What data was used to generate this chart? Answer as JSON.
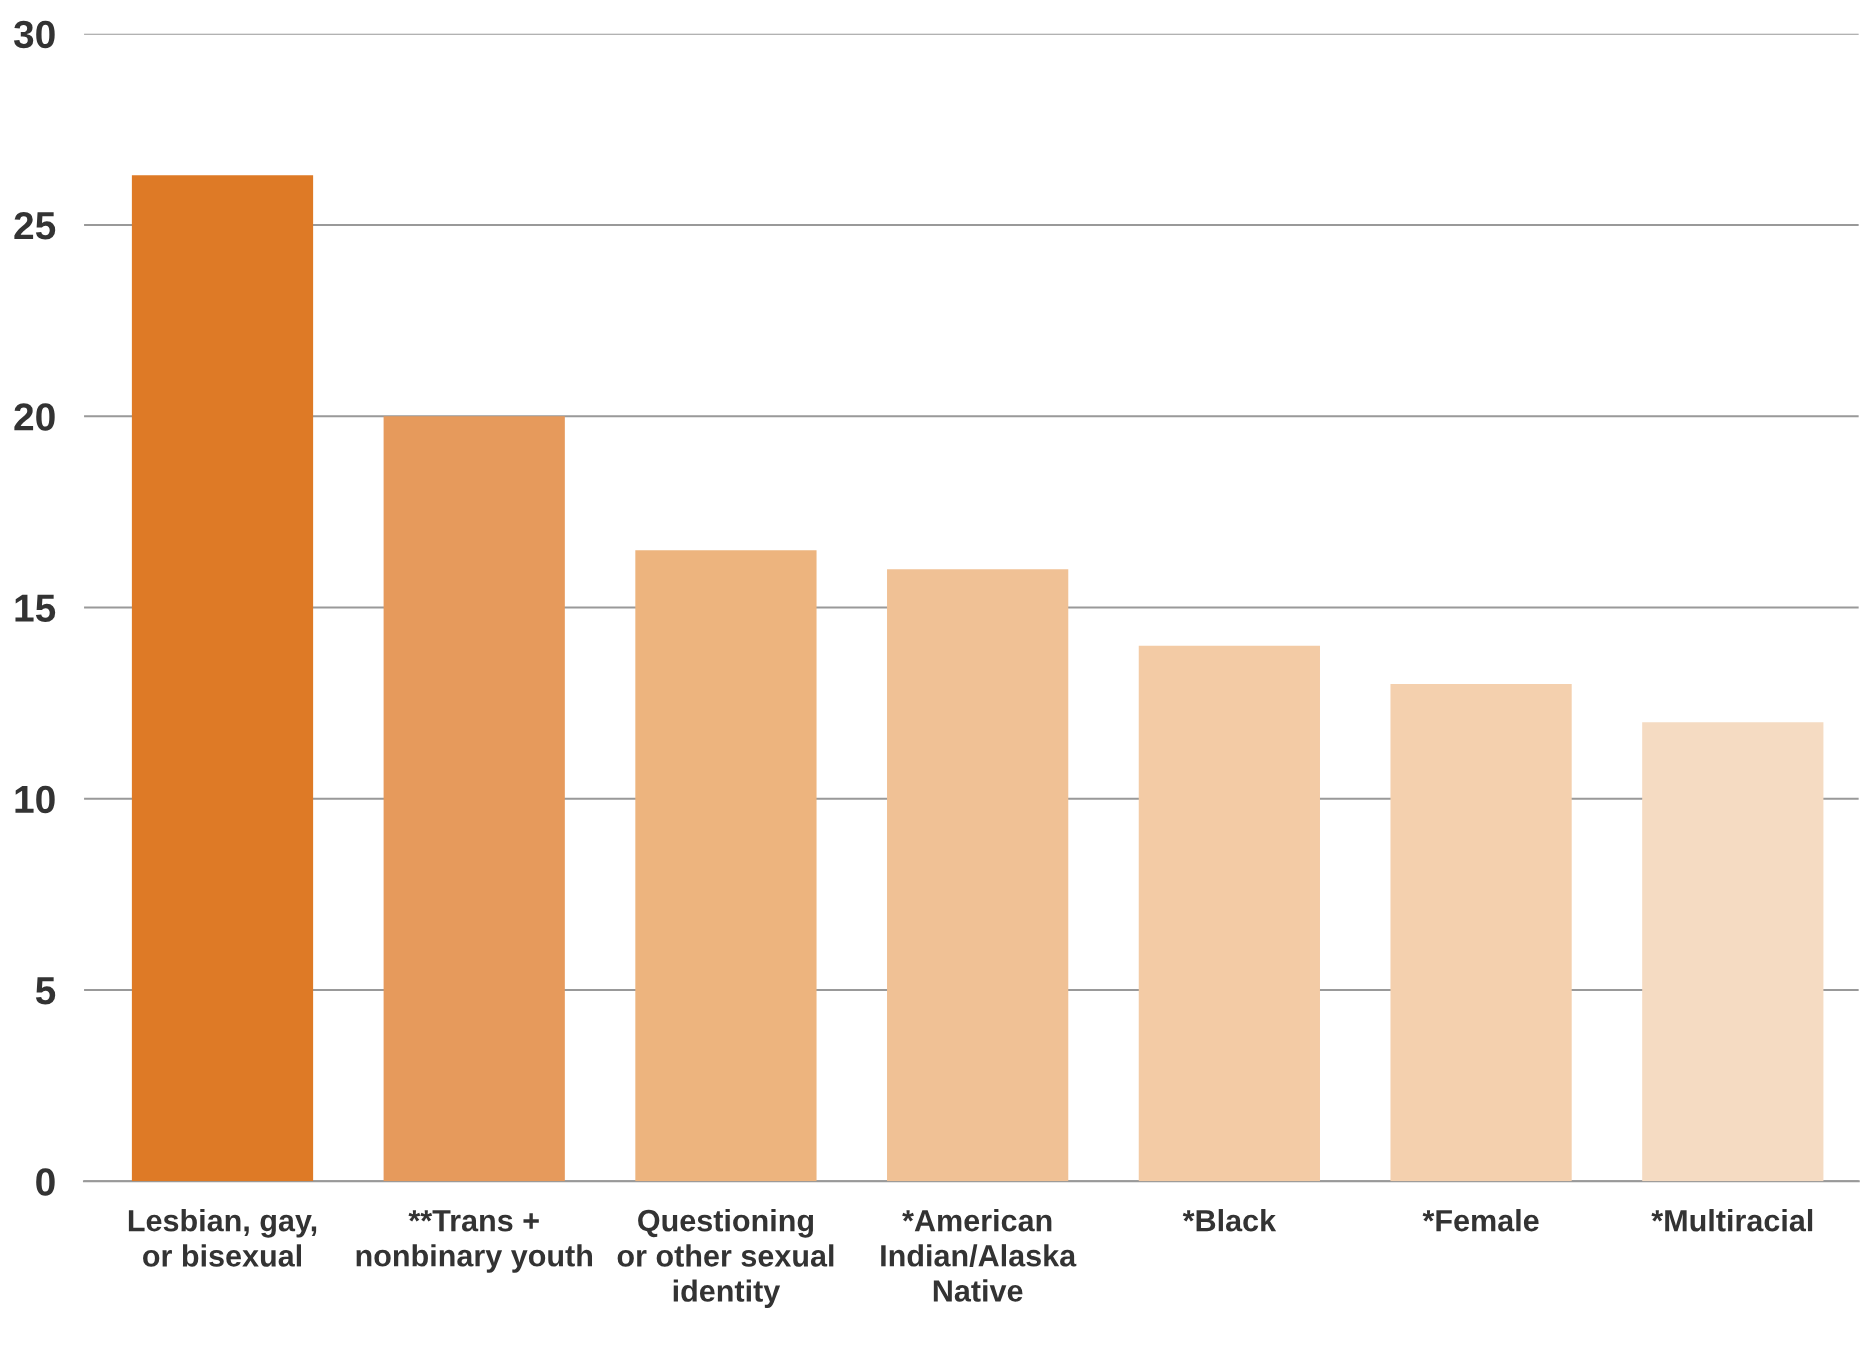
{
  "chart_data": {
    "type": "bar",
    "categories": [
      "Lesbian, gay,\nor bisexual",
      "**Trans +\nnonbinary youth",
      "Questioning\nor other sexual\nidentity",
      "*American\nIndian/Alaska\nNative",
      "*Black",
      "*Female",
      "*Multiracial"
    ],
    "values": [
      26.3,
      20,
      16.5,
      16,
      14,
      13,
      12
    ],
    "colors": [
      "#de7a26",
      "#e69a5c",
      "#edb47e",
      "#f0c195",
      "#f3cba5",
      "#f4d0ae",
      "#f5dbc2"
    ],
    "ylim": [
      0,
      30
    ],
    "yticks": [
      0,
      5,
      10,
      15,
      20,
      25,
      30
    ],
    "grid": "y"
  }
}
